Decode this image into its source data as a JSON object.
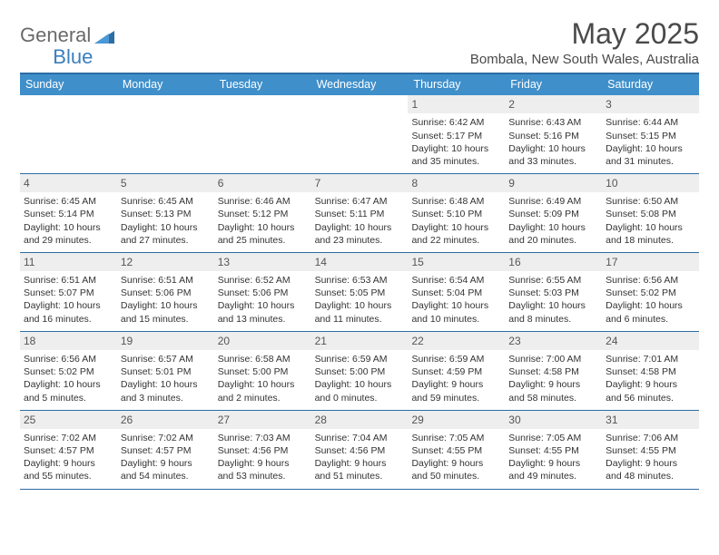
{
  "brand": {
    "part1": "General",
    "part2": "Blue"
  },
  "title": "May 2025",
  "location": "Bombala, New South Wales, Australia",
  "header_color": "#3f8fca",
  "border_color": "#2e6da4",
  "daynum_bg": "#eeeeee",
  "text_color": "#333333",
  "weekdays": [
    "Sunday",
    "Monday",
    "Tuesday",
    "Wednesday",
    "Thursday",
    "Friday",
    "Saturday"
  ],
  "weeks": [
    [
      {
        "n": "",
        "sr": "",
        "ss": "",
        "dl": ""
      },
      {
        "n": "",
        "sr": "",
        "ss": "",
        "dl": ""
      },
      {
        "n": "",
        "sr": "",
        "ss": "",
        "dl": ""
      },
      {
        "n": "",
        "sr": "",
        "ss": "",
        "dl": ""
      },
      {
        "n": "1",
        "sr": "Sunrise: 6:42 AM",
        "ss": "Sunset: 5:17 PM",
        "dl": "Daylight: 10 hours and 35 minutes."
      },
      {
        "n": "2",
        "sr": "Sunrise: 6:43 AM",
        "ss": "Sunset: 5:16 PM",
        "dl": "Daylight: 10 hours and 33 minutes."
      },
      {
        "n": "3",
        "sr": "Sunrise: 6:44 AM",
        "ss": "Sunset: 5:15 PM",
        "dl": "Daylight: 10 hours and 31 minutes."
      }
    ],
    [
      {
        "n": "4",
        "sr": "Sunrise: 6:45 AM",
        "ss": "Sunset: 5:14 PM",
        "dl": "Daylight: 10 hours and 29 minutes."
      },
      {
        "n": "5",
        "sr": "Sunrise: 6:45 AM",
        "ss": "Sunset: 5:13 PM",
        "dl": "Daylight: 10 hours and 27 minutes."
      },
      {
        "n": "6",
        "sr": "Sunrise: 6:46 AM",
        "ss": "Sunset: 5:12 PM",
        "dl": "Daylight: 10 hours and 25 minutes."
      },
      {
        "n": "7",
        "sr": "Sunrise: 6:47 AM",
        "ss": "Sunset: 5:11 PM",
        "dl": "Daylight: 10 hours and 23 minutes."
      },
      {
        "n": "8",
        "sr": "Sunrise: 6:48 AM",
        "ss": "Sunset: 5:10 PM",
        "dl": "Daylight: 10 hours and 22 minutes."
      },
      {
        "n": "9",
        "sr": "Sunrise: 6:49 AM",
        "ss": "Sunset: 5:09 PM",
        "dl": "Daylight: 10 hours and 20 minutes."
      },
      {
        "n": "10",
        "sr": "Sunrise: 6:50 AM",
        "ss": "Sunset: 5:08 PM",
        "dl": "Daylight: 10 hours and 18 minutes."
      }
    ],
    [
      {
        "n": "11",
        "sr": "Sunrise: 6:51 AM",
        "ss": "Sunset: 5:07 PM",
        "dl": "Daylight: 10 hours and 16 minutes."
      },
      {
        "n": "12",
        "sr": "Sunrise: 6:51 AM",
        "ss": "Sunset: 5:06 PM",
        "dl": "Daylight: 10 hours and 15 minutes."
      },
      {
        "n": "13",
        "sr": "Sunrise: 6:52 AM",
        "ss": "Sunset: 5:06 PM",
        "dl": "Daylight: 10 hours and 13 minutes."
      },
      {
        "n": "14",
        "sr": "Sunrise: 6:53 AM",
        "ss": "Sunset: 5:05 PM",
        "dl": "Daylight: 10 hours and 11 minutes."
      },
      {
        "n": "15",
        "sr": "Sunrise: 6:54 AM",
        "ss": "Sunset: 5:04 PM",
        "dl": "Daylight: 10 hours and 10 minutes."
      },
      {
        "n": "16",
        "sr": "Sunrise: 6:55 AM",
        "ss": "Sunset: 5:03 PM",
        "dl": "Daylight: 10 hours and 8 minutes."
      },
      {
        "n": "17",
        "sr": "Sunrise: 6:56 AM",
        "ss": "Sunset: 5:02 PM",
        "dl": "Daylight: 10 hours and 6 minutes."
      }
    ],
    [
      {
        "n": "18",
        "sr": "Sunrise: 6:56 AM",
        "ss": "Sunset: 5:02 PM",
        "dl": "Daylight: 10 hours and 5 minutes."
      },
      {
        "n": "19",
        "sr": "Sunrise: 6:57 AM",
        "ss": "Sunset: 5:01 PM",
        "dl": "Daylight: 10 hours and 3 minutes."
      },
      {
        "n": "20",
        "sr": "Sunrise: 6:58 AM",
        "ss": "Sunset: 5:00 PM",
        "dl": "Daylight: 10 hours and 2 minutes."
      },
      {
        "n": "21",
        "sr": "Sunrise: 6:59 AM",
        "ss": "Sunset: 5:00 PM",
        "dl": "Daylight: 10 hours and 0 minutes."
      },
      {
        "n": "22",
        "sr": "Sunrise: 6:59 AM",
        "ss": "Sunset: 4:59 PM",
        "dl": "Daylight: 9 hours and 59 minutes."
      },
      {
        "n": "23",
        "sr": "Sunrise: 7:00 AM",
        "ss": "Sunset: 4:58 PM",
        "dl": "Daylight: 9 hours and 58 minutes."
      },
      {
        "n": "24",
        "sr": "Sunrise: 7:01 AM",
        "ss": "Sunset: 4:58 PM",
        "dl": "Daylight: 9 hours and 56 minutes."
      }
    ],
    [
      {
        "n": "25",
        "sr": "Sunrise: 7:02 AM",
        "ss": "Sunset: 4:57 PM",
        "dl": "Daylight: 9 hours and 55 minutes."
      },
      {
        "n": "26",
        "sr": "Sunrise: 7:02 AM",
        "ss": "Sunset: 4:57 PM",
        "dl": "Daylight: 9 hours and 54 minutes."
      },
      {
        "n": "27",
        "sr": "Sunrise: 7:03 AM",
        "ss": "Sunset: 4:56 PM",
        "dl": "Daylight: 9 hours and 53 minutes."
      },
      {
        "n": "28",
        "sr": "Sunrise: 7:04 AM",
        "ss": "Sunset: 4:56 PM",
        "dl": "Daylight: 9 hours and 51 minutes."
      },
      {
        "n": "29",
        "sr": "Sunrise: 7:05 AM",
        "ss": "Sunset: 4:55 PM",
        "dl": "Daylight: 9 hours and 50 minutes."
      },
      {
        "n": "30",
        "sr": "Sunrise: 7:05 AM",
        "ss": "Sunset: 4:55 PM",
        "dl": "Daylight: 9 hours and 49 minutes."
      },
      {
        "n": "31",
        "sr": "Sunrise: 7:06 AM",
        "ss": "Sunset: 4:55 PM",
        "dl": "Daylight: 9 hours and 48 minutes."
      }
    ]
  ]
}
